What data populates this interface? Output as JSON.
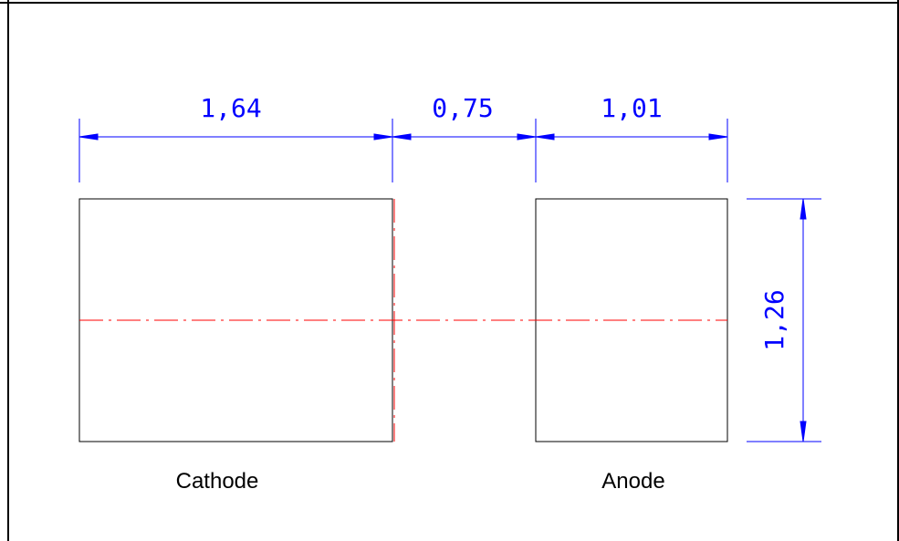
{
  "drawing": {
    "labels": {
      "cathode": "Cathode",
      "anode": "Anode"
    },
    "dimensions": {
      "cathode_width": "1,64",
      "gap": "0,75",
      "anode_width": "1,01",
      "height": "1,26"
    },
    "colors": {
      "outline": "#000000",
      "dimension": "#0000ff",
      "centerline": "#ff0000",
      "background": "#ffffff"
    }
  }
}
